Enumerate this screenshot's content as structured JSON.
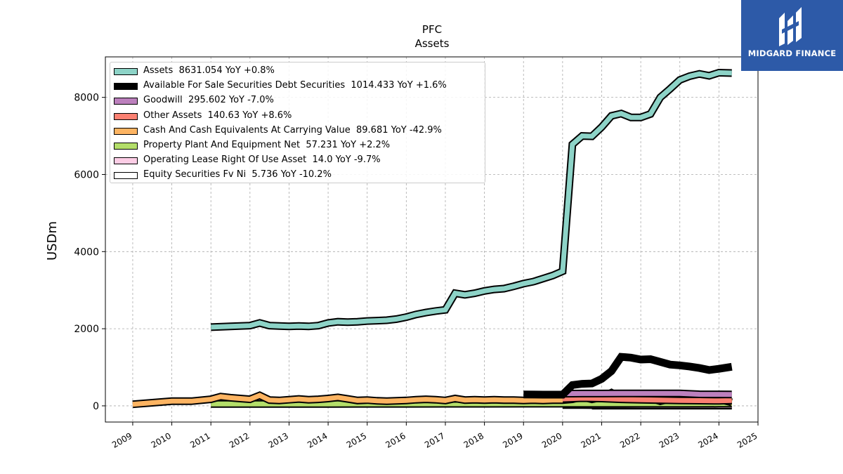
{
  "chart_data": {
    "type": "area",
    "title": "PFC",
    "subtitle": "Assets",
    "ylabel": "USDm",
    "xlabel": "",
    "xlim": [
      2008.3,
      2025.0
    ],
    "ylim": [
      -420,
      9050
    ],
    "x_ticks": [
      2009,
      2010,
      2011,
      2012,
      2013,
      2014,
      2015,
      2016,
      2017,
      2018,
      2019,
      2020,
      2021,
      2022,
      2023,
      2024,
      2025
    ],
    "y_ticks": [
      0,
      2000,
      4000,
      6000,
      8000
    ],
    "grid": true,
    "legend_position": "upper-left",
    "series": [
      {
        "name": "Assets",
        "legend": "Assets  8631.054 YoY +0.8%",
        "color": "#8dd3c7",
        "stroke_width": 11,
        "x": [
          2011.0,
          2011.5,
          2012.0,
          2012.25,
          2012.5,
          2012.75,
          2013.0,
          2013.25,
          2013.5,
          2013.75,
          2014.0,
          2014.25,
          2014.5,
          2014.75,
          2015.0,
          2015.25,
          2015.5,
          2015.75,
          2016.0,
          2016.25,
          2016.5,
          2016.75,
          2017.0,
          2017.25,
          2017.5,
          2017.75,
          2018.0,
          2018.25,
          2018.5,
          2018.75,
          2019.0,
          2019.25,
          2019.5,
          2019.75,
          2020.0,
          2020.25,
          2020.5,
          2020.75,
          2021.0,
          2021.25,
          2021.5,
          2021.75,
          2022.0,
          2022.25,
          2022.5,
          2022.75,
          2023.0,
          2023.25,
          2023.5,
          2023.75,
          2024.0,
          2024.33
        ],
        "y": [
          2040,
          2060,
          2080,
          2150,
          2080,
          2070,
          2060,
          2070,
          2060,
          2080,
          2150,
          2180,
          2170,
          2180,
          2200,
          2210,
          2220,
          2250,
          2300,
          2370,
          2420,
          2460,
          2490,
          2920,
          2880,
          2920,
          2980,
          3020,
          3040,
          3100,
          3170,
          3220,
          3300,
          3380,
          3490,
          6780,
          7000,
          6990,
          7230,
          7520,
          7580,
          7480,
          7480,
          7570,
          8000,
          8220,
          8450,
          8550,
          8610,
          8560,
          8640,
          8631
        ]
      },
      {
        "name": "Available For Sale Securities Debt Securities",
        "legend": "Available For Sale Securities Debt Securities  1014.433 YoY +1.6%",
        "color": "#000000",
        "stroke_width": 11,
        "x": [
          2019.0,
          2019.5,
          2020.0,
          2020.25,
          2020.5,
          2020.75,
          2021.0,
          2021.25,
          2021.5,
          2021.75,
          2022.0,
          2022.25,
          2022.5,
          2022.75,
          2023.0,
          2023.25,
          2023.5,
          2023.75,
          2024.0,
          2024.33
        ],
        "y": [
          295,
          290,
          290,
          540,
          570,
          580,
          700,
          900,
          1270,
          1250,
          1200,
          1210,
          1140,
          1070,
          1050,
          1020,
          980,
          930,
          960,
          1014
        ]
      },
      {
        "name": "Goodwill",
        "legend": "Goodwill  295.602 YoY -7.0%",
        "color": "#bc80bd",
        "stroke_width": 11,
        "x": [
          2020.0,
          2020.5,
          2021.0,
          2021.5,
          2022.0,
          2022.5,
          2023.0,
          2023.5,
          2024.0,
          2024.33
        ],
        "y": [
          315,
          320,
          320,
          322,
          322,
          322,
          322,
          300,
          297,
          295.6
        ]
      },
      {
        "name": "Other Assets",
        "legend": "Other Assets  140.63 YoY +8.6%",
        "color": "#fb8072",
        "stroke_width": 11,
        "x": [
          2020.0,
          2020.5,
          2021.0,
          2021.5,
          2022.0,
          2022.5,
          2023.0,
          2023.5,
          2024.0,
          2024.33
        ],
        "y": [
          180,
          200,
          190,
          170,
          160,
          150,
          140,
          135,
          130,
          140.6
        ]
      },
      {
        "name": "Cash And Cash Equivalents At Carrying Value",
        "legend": "Cash And Cash Equivalents At Carrying Value  89.681 YoY -42.9%",
        "color": "#fdb462",
        "stroke_width": 11,
        "x": [
          2009.0,
          2009.5,
          2010.0,
          2010.5,
          2011.0,
          2011.25,
          2011.5,
          2011.75,
          2012.0,
          2012.25,
          2012.5,
          2012.75,
          2013.0,
          2013.25,
          2013.5,
          2013.75,
          2014.0,
          2014.25,
          2014.5,
          2014.75,
          2015.0,
          2015.25,
          2015.5,
          2015.75,
          2016.0,
          2016.25,
          2016.5,
          2016.75,
          2017.0,
          2017.25,
          2017.5,
          2017.75,
          2018.0,
          2018.25,
          2018.5,
          2018.75,
          2019.0,
          2019.25,
          2019.5,
          2019.75,
          2020.0,
          2020.25,
          2020.5,
          2020.75,
          2021.0,
          2021.25,
          2021.5,
          2021.75,
          2022.0,
          2022.25,
          2022.5,
          2022.75,
          2023.0,
          2023.25,
          2023.5,
          2023.75,
          2024.0,
          2024.33
        ],
        "y": [
          40,
          80,
          120,
          120,
          170,
          240,
          210,
          190,
          170,
          270,
          150,
          140,
          160,
          180,
          160,
          170,
          190,
          220,
          180,
          140,
          150,
          130,
          120,
          130,
          140,
          160,
          170,
          160,
          140,
          190,
          150,
          160,
          150,
          160,
          150,
          150,
          140,
          150,
          140,
          150,
          150,
          170,
          230,
          170,
          220,
          340,
          200,
          180,
          200,
          200,
          120,
          180,
          200,
          210,
          180,
          190,
          170,
          89.7
        ]
      },
      {
        "name": "Property Plant And Equipment Net",
        "legend": "Property Plant And Equipment Net  57.231 YoY +2.2%",
        "color": "#b3de69",
        "stroke_width": 11,
        "x": [
          2011.0,
          2012.0,
          2013.0,
          2014.0,
          2015.0,
          2016.0,
          2017.0,
          2018.0,
          2019.0,
          2020.0,
          2021.0,
          2022.0,
          2023.0,
          2024.0,
          2024.33
        ],
        "y": [
          50,
          50,
          50,
          50,
          52,
          52,
          54,
          54,
          55,
          55,
          56,
          56,
          56,
          57,
          57.2
        ]
      },
      {
        "name": "Operating Lease Right Of Use Asset",
        "legend": "Operating Lease Right Of Use Asset  14.0 YoY -9.7%",
        "color": "#fccde5",
        "stroke_width": 11,
        "x": [
          2020.0,
          2020.5,
          2020.75,
          2021.0,
          2021.5,
          2022.0,
          2022.5,
          2023.0,
          2023.5,
          2024.0,
          2024.33
        ],
        "y": [
          20,
          20,
          19,
          18,
          17,
          16,
          16,
          15,
          15,
          14,
          14.0
        ]
      },
      {
        "name": "Equity Securities Fv Ni",
        "legend": "Equity Securities Fv Ni  5.736 YoY -10.2%",
        "color": "#ffffff",
        "stroke_width": 11,
        "x": [
          2020.75,
          2021.0,
          2021.5,
          2022.0,
          2022.5,
          2023.0,
          2023.5,
          2024.0,
          2024.33
        ],
        "y": [
          7,
          7,
          7,
          6,
          6,
          6,
          6,
          6,
          5.7
        ]
      }
    ]
  },
  "logo": {
    "text": "MIDGARD FINANCE",
    "background": "#2d5aa8"
  }
}
